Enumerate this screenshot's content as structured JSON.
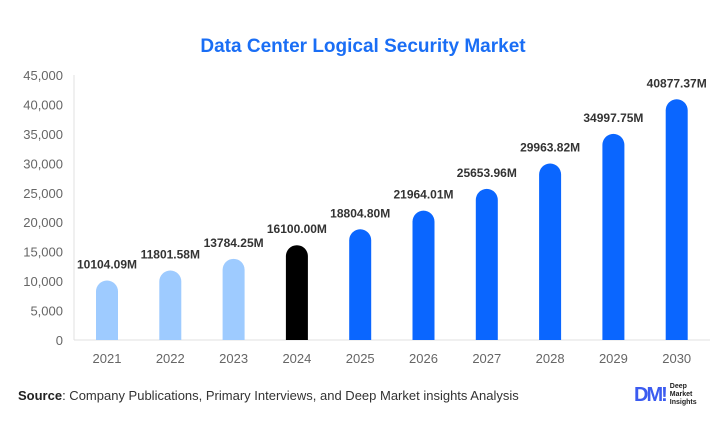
{
  "chart_data": {
    "type": "bar",
    "title": "Data Center Logical Security Market",
    "categories": [
      "2021",
      "2022",
      "2023",
      "2024",
      "2025",
      "2026",
      "2027",
      "2028",
      "2029",
      "2030"
    ],
    "values": [
      10104.09,
      11801.58,
      13784.25,
      16100.0,
      18804.8,
      21964.01,
      25653.96,
      29963.82,
      34997.75,
      40877.37
    ],
    "data_labels": [
      "10104.09M",
      "11801.58M",
      "13784.25M",
      "16100.00M",
      "18804.80M",
      "21964.01M",
      "25653.96M",
      "29963.82M",
      "34997.75M",
      "40877.37M"
    ],
    "bar_colors": [
      "#9ecbff",
      "#9ecbff",
      "#9ecbff",
      "#000000",
      "#0a66ff",
      "#0a66ff",
      "#0a66ff",
      "#0a66ff",
      "#0a66ff",
      "#0a66ff"
    ],
    "ylim": [
      0,
      45000
    ],
    "yticks": [
      "0",
      "5,000",
      "10,000",
      "15,000",
      "20,000",
      "25,000",
      "30,000",
      "35,000",
      "40,000",
      "45,000"
    ],
    "grid": false,
    "xlabel": "",
    "ylabel": ""
  },
  "footer": {
    "source_label": "Source",
    "source_text": ": Company Publications, Primary Interviews, and Deep Market insights Analysis",
    "logo_mark": "DM",
    "logo_text": [
      "Deep",
      "Market",
      "Insights"
    ]
  }
}
